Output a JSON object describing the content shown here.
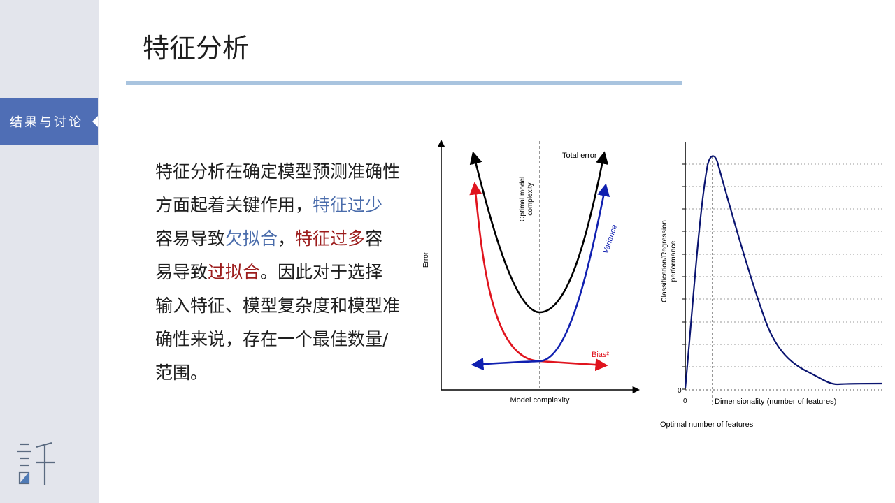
{
  "sidebar": {
    "active_item": "结果与讨论"
  },
  "page": {
    "title": "特征分析"
  },
  "body_text": {
    "p1": "特征分析在确定模型预测准确性方面起着关键作用，",
    "p2": "特征过少",
    "p3": "容易导致",
    "p4": "欠拟合",
    "p5": "，",
    "p6": "特征过多",
    "p7": "容易导致",
    "p8": "过拟合",
    "p9": "。因此对于选择输入特征、模型复杂度和模型准确性来说，存在一个最佳数量/范围。"
  },
  "colors": {
    "accent": "#4f6eb5",
    "blue_text": "#4a6cab",
    "red_text": "#9c1c1c",
    "rule": "#a9c4df"
  },
  "chart_data": [
    {
      "type": "line",
      "title": "",
      "xlabel": "Model complexity",
      "ylabel": "Error",
      "annotations": [
        "Optimal model complexity"
      ],
      "series": [
        {
          "name": "Total error",
          "color": "#000000",
          "shape": "U-shaped, minimum at optimal complexity"
        },
        {
          "name": "Bias²",
          "color": "#e0141e",
          "shape": "decreasing"
        },
        {
          "name": "Variance",
          "color": "#1020b0",
          "shape": "increasing"
        }
      ]
    },
    {
      "type": "line",
      "title": "",
      "xlabel": "Dimensionality (number of features)",
      "ylabel": "Classification/Regression performance",
      "x_tick_labels": [
        "0"
      ],
      "y_tick_labels": [
        "0"
      ],
      "annotations": [
        "Optimal number of features"
      ],
      "grid": "horizontal dashed",
      "series": [
        {
          "color": "#0a1470",
          "shape": "rises sharply to a peak at the optimal number of features, then decays"
        }
      ]
    }
  ]
}
